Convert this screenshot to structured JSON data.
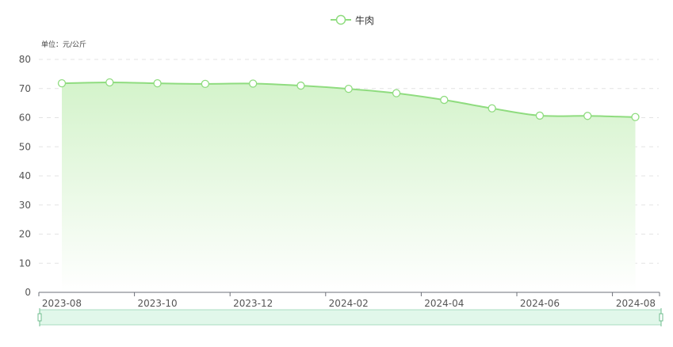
{
  "chart_data": {
    "type": "area",
    "unit_label": "单位：元/公斤",
    "legend": {
      "position": "top-center"
    },
    "categories": [
      "2023-08",
      "2023-09",
      "2023-10",
      "2023-11",
      "2023-12",
      "2024-01",
      "2024-02",
      "2024-03",
      "2024-04",
      "2024-05",
      "2024-06",
      "2024-07",
      "2024-08"
    ],
    "x_tick_labels": [
      "2023-08",
      "2023-10",
      "2023-12",
      "2024-02",
      "2024-04",
      "2024-06",
      "2024-08"
    ],
    "series": [
      {
        "name": "牛肉",
        "values": [
          71.8,
          72.1,
          71.8,
          71.6,
          71.7,
          71.0,
          69.9,
          68.4,
          66.1,
          63.2,
          60.7,
          60.6,
          60.2
        ]
      }
    ],
    "ylim": [
      0,
      80
    ],
    "y_ticks": [
      0,
      10,
      20,
      30,
      40,
      50,
      60,
      70,
      80
    ],
    "grid": "horizontal dashed",
    "colors": {
      "line": "#8fdc7f",
      "area_top": "#d4f3cb",
      "area_bottom": "#ffffff",
      "zoom_fill": "#e1f7ea",
      "zoom_border": "#a8ddc0"
    },
    "data_zoom": {
      "start_fraction": 0,
      "end_fraction": 1
    }
  }
}
